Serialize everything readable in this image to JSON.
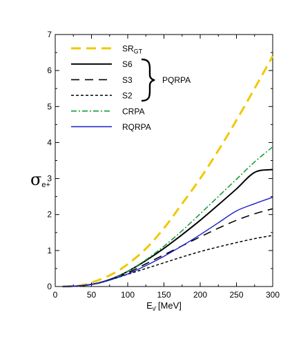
{
  "chart_data": {
    "type": "line",
    "title": "",
    "xlabel": {
      "main": "E",
      "sub": "ν̄",
      "unit": " [MeV]"
    },
    "ylabel": {
      "main": "σ",
      "sub": "e+"
    },
    "xlim": [
      0,
      300
    ],
    "ylim": [
      0,
      7
    ],
    "xticks": [
      0,
      50,
      100,
      150,
      200,
      250,
      300
    ],
    "yticks": [
      0,
      1,
      2,
      3,
      4,
      5,
      6,
      7
    ],
    "grid": false,
    "legend_position": "top-left",
    "brace_label": "PQRPA",
    "x": [
      10,
      25,
      40,
      60,
      80,
      100,
      125,
      150,
      175,
      200,
      225,
      250,
      275,
      300
    ],
    "series": [
      {
        "name": "SR",
        "name_sub": "GT",
        "color": "#f0c800",
        "dash": "14,8",
        "width": 3,
        "values": [
          0.0,
          0.01,
          0.05,
          0.18,
          0.36,
          0.62,
          1.05,
          1.62,
          2.3,
          3.0,
          3.78,
          4.62,
          5.5,
          6.4
        ]
      },
      {
        "name": "S6",
        "name_sub": "",
        "color": "#000000",
        "dash": "",
        "width": 2,
        "values": [
          0.0,
          0.01,
          0.03,
          0.1,
          0.23,
          0.42,
          0.72,
          1.06,
          1.44,
          1.84,
          2.27,
          2.71,
          3.17,
          3.25
        ]
      },
      {
        "name": "S3",
        "name_sub": "",
        "color": "#000000",
        "dash": "12,8",
        "width": 1.6,
        "values": [
          0.0,
          0.01,
          0.03,
          0.1,
          0.22,
          0.38,
          0.63,
          0.88,
          1.13,
          1.38,
          1.62,
          1.84,
          2.02,
          2.16
        ]
      },
      {
        "name": "S2",
        "name_sub": "",
        "color": "#000000",
        "dash": "4,3",
        "width": 1.5,
        "values": [
          0.0,
          0.01,
          0.03,
          0.1,
          0.21,
          0.34,
          0.5,
          0.66,
          0.82,
          0.97,
          1.1,
          1.22,
          1.33,
          1.42
        ]
      },
      {
        "name": "CRPA",
        "name_sub": "",
        "color": "#1a9a3a",
        "dash": "8,3,2,3",
        "width": 1.6,
        "values": [
          0.0,
          0.01,
          0.03,
          0.09,
          0.22,
          0.42,
          0.74,
          1.12,
          1.55,
          2.02,
          2.5,
          2.98,
          3.46,
          3.88
        ]
      },
      {
        "name": "RQRPA",
        "name_sub": "",
        "color": "#1a1acc",
        "dash": "",
        "width": 1.4,
        "values": [
          0.0,
          0.01,
          0.03,
          0.1,
          0.21,
          0.35,
          0.58,
          0.84,
          1.13,
          1.44,
          1.77,
          2.1,
          2.3,
          2.48
        ]
      }
    ]
  }
}
